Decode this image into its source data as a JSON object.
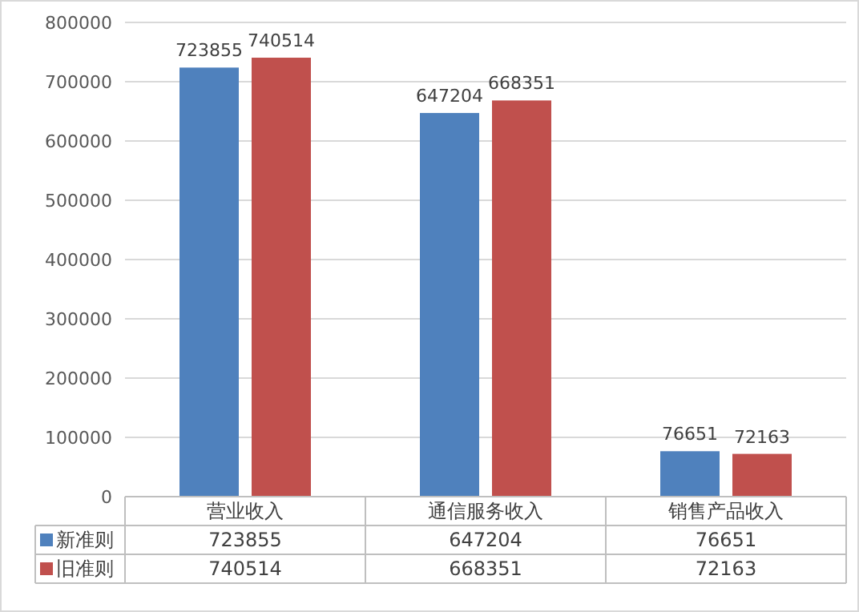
{
  "chart_data": {
    "type": "bar",
    "categories": [
      "营业收入",
      "通信服务收入",
      "销售产品收入"
    ],
    "series": [
      {
        "name": "新准则",
        "color": "#4f81bd",
        "values": [
          723855,
          647204,
          76651
        ],
        "value_labels": [
          "723855",
          "647204",
          "76651"
        ]
      },
      {
        "name": "旧准则",
        "color": "#c0504d",
        "values": [
          740514,
          668351,
          72163
        ],
        "value_labels": [
          "740514",
          "668351",
          "72163"
        ]
      }
    ],
    "ylim": [
      0,
      800000
    ],
    "yticks": [
      0,
      100000,
      200000,
      300000,
      400000,
      500000,
      600000,
      700000,
      800000
    ],
    "annotations": [
      "723855",
      "647204",
      "76651",
      "740514",
      "668351",
      "72163"
    ],
    "grid": "y",
    "legend": "bottom"
  }
}
